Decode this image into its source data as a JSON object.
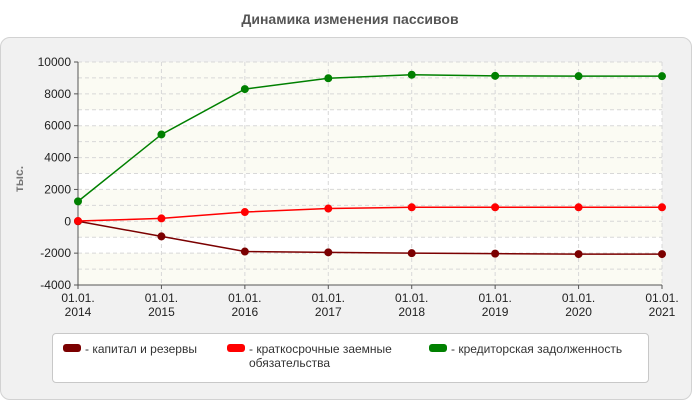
{
  "chart_data": {
    "type": "line",
    "title": "Динамика изменения пассивов",
    "ylabel": "тыс.",
    "xlabel": "",
    "categories": [
      [
        "01.01.",
        "2014"
      ],
      [
        "01.01.",
        "2015"
      ],
      [
        "01.01.",
        "2016"
      ],
      [
        "01.01.",
        "2017"
      ],
      [
        "01.01.",
        "2018"
      ],
      [
        "01.01.",
        "2019"
      ],
      [
        "01.01.",
        "2020"
      ],
      [
        "01.01.",
        "2021"
      ]
    ],
    "yticks": [
      "10000",
      "8000",
      "6000",
      "4000",
      "2000",
      "0",
      "-2000",
      "-4000"
    ],
    "ylim": [
      -4000,
      10000
    ],
    "grid": true,
    "legend_position": "bottom",
    "series": [
      {
        "name": "капитал и резервы",
        "color": "#7b0000",
        "values": [
          0,
          -950,
          -1900,
          -1950,
          -2000,
          -2030,
          -2060,
          -2060
        ]
      },
      {
        "name": "краткосрочные заемные обязательства",
        "label_lines": [
          "краткосрочные заемные",
          "обязательства"
        ],
        "color": "#ff0000",
        "values": [
          20,
          180,
          580,
          800,
          880,
          880,
          880,
          880
        ]
      },
      {
        "name": "кредиторская задолженность",
        "color": "#008000",
        "values": [
          1250,
          5450,
          8300,
          8980,
          9200,
          9130,
          9110,
          9110
        ]
      }
    ]
  }
}
